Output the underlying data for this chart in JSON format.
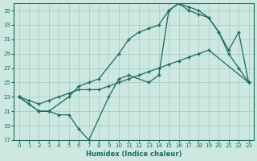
{
  "xlabel": "Humidex (Indice chaleur)",
  "bg_color": "#cce8e0",
  "grid_color": "#aacfc8",
  "line_color": "#1a6b5a",
  "xlim": [
    -0.5,
    23.5
  ],
  "ylim": [
    17,
    36
  ],
  "xticks": [
    0,
    1,
    2,
    3,
    4,
    5,
    6,
    7,
    8,
    9,
    10,
    11,
    12,
    13,
    14,
    15,
    16,
    17,
    18,
    19,
    20,
    21,
    22,
    23
  ],
  "yticks": [
    17,
    19,
    21,
    23,
    25,
    27,
    29,
    31,
    33,
    35
  ],
  "line1_x": [
    0,
    1,
    2,
    3,
    4,
    5,
    6,
    7,
    9,
    10,
    11,
    13,
    14,
    15,
    16,
    17,
    18,
    19,
    20,
    21,
    22,
    23
  ],
  "line1_y": [
    23,
    22,
    21,
    21,
    20.5,
    20.5,
    18.5,
    17,
    23,
    25.5,
    26,
    25,
    26,
    35,
    36,
    35.5,
    35,
    34,
    32,
    29,
    27,
    25
  ],
  "line2_x": [
    0,
    2,
    3,
    5,
    6,
    7,
    8,
    10,
    11,
    12,
    13,
    14,
    15,
    16,
    17,
    18,
    19,
    20,
    21,
    22,
    23
  ],
  "line2_y": [
    23,
    21,
    21,
    23,
    24.5,
    25,
    25.5,
    29,
    31,
    32,
    32.5,
    33,
    35,
    36,
    35,
    34.5,
    34,
    32,
    29.5,
    32,
    25
  ],
  "line3_x": [
    0,
    1,
    2,
    3,
    4,
    5,
    6,
    7,
    8,
    9,
    10,
    11,
    12,
    13,
    14,
    15,
    16,
    17,
    18,
    19,
    23
  ],
  "line3_y": [
    23,
    22.5,
    22,
    22.5,
    23,
    23.5,
    24,
    24,
    24,
    24.5,
    25,
    25.5,
    26,
    26.5,
    27,
    27.5,
    28,
    28.5,
    29,
    29.5,
    25
  ]
}
